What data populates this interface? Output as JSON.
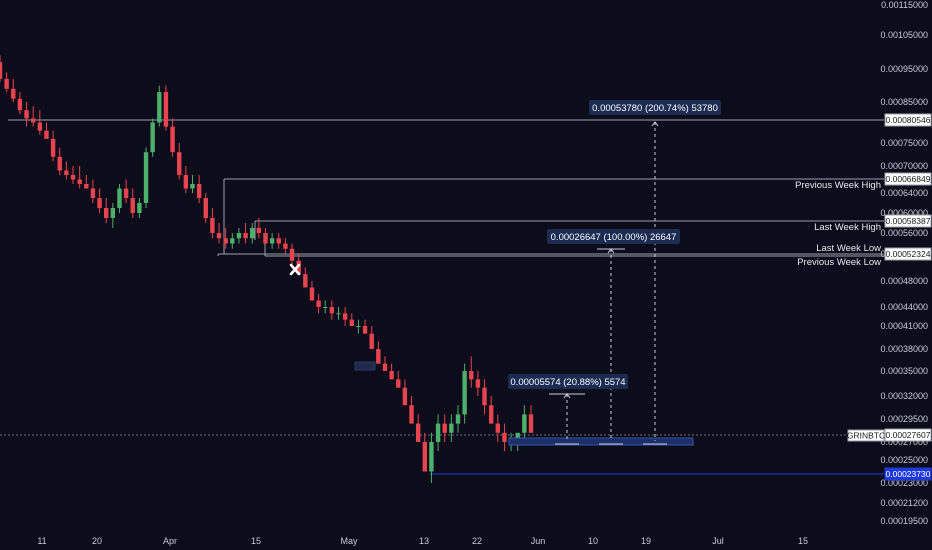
{
  "chart_data": {
    "type": "candlestick",
    "symbol": "GRINBTC",
    "last_price": "0.00027607",
    "x_axis_ticks": [
      "11",
      "20",
      "Apr",
      "15",
      "May",
      "13",
      "22",
      "Jun",
      "10",
      "19",
      "Jul",
      "15"
    ],
    "y_axis_ticks": [
      "0.00115000",
      "0.00105000",
      "0.00095000",
      "0.00085000",
      "0.00075000",
      "0.00070000",
      "0.00064000",
      "0.00060000",
      "0.00056000",
      "0.00052000",
      "0.00048000",
      "0.00044000",
      "0.00041000",
      "0.00038000",
      "0.00035000",
      "0.00032000",
      "0.00029500",
      "0.00027000",
      "0.00025000",
      "0.00023000",
      "0.00021200",
      "0.00019500"
    ],
    "levels": [
      {
        "price": "0.00080546",
        "label": ""
      },
      {
        "price": "0.00066849",
        "label": "Previous Week High"
      },
      {
        "price": "0.00058387",
        "label": "Last Week High"
      },
      {
        "price": "0.00052324",
        "label": "Last Week Low"
      },
      {
        "price": "",
        "label": "Previous Week Low"
      },
      {
        "price": "0.00023730",
        "label": "",
        "color": "#1e3adf"
      }
    ],
    "measurements": [
      {
        "text": "0.00053780 (200.74%) 53780"
      },
      {
        "text": "0.00026647 (100.00%) 26647"
      },
      {
        "text": "0.00005574 (20.88%) 5574"
      }
    ],
    "colors": {
      "up": "#4caf6a",
      "down": "#e8444f",
      "background": "#0c0c1a",
      "level": "#9aa0ac",
      "target_line": "#1e3adf"
    },
    "candles": [
      [
        0.00097,
        0.00099,
        0.00091,
        0.00092
      ],
      [
        0.00092,
        0.00094,
        0.00088,
        0.00089
      ],
      [
        0.00089,
        0.00092,
        0.00085,
        0.00086
      ],
      [
        0.00086,
        0.00088,
        0.00082,
        0.00083
      ],
      [
        0.00083,
        0.00085,
        0.00079,
        0.00081
      ],
      [
        0.00081,
        0.00084,
        0.00079,
        0.0008
      ],
      [
        0.0008,
        0.00083,
        0.00077,
        0.00078
      ],
      [
        0.00078,
        0.0008,
        0.00076,
        0.00076
      ],
      [
        0.00076,
        0.00078,
        0.00071,
        0.00072
      ],
      [
        0.00072,
        0.00074,
        0.00068,
        0.00069
      ],
      [
        0.00069,
        0.00071,
        0.00067,
        0.00068
      ],
      [
        0.00068,
        0.0007,
        0.00066,
        0.00067
      ],
      [
        0.00067,
        0.0007,
        0.00065,
        0.00066
      ],
      [
        0.00066,
        0.00068,
        0.00065,
        0.00065
      ],
      [
        0.00065,
        0.00067,
        0.00062,
        0.00063
      ],
      [
        0.00063,
        0.00065,
        0.0006,
        0.00061
      ],
      [
        0.00061,
        0.00063,
        0.00058,
        0.00059
      ],
      [
        0.00059,
        0.00062,
        0.00057,
        0.00061
      ],
      [
        0.00061,
        0.00066,
        0.0006,
        0.00065
      ],
      [
        0.00065,
        0.00067,
        0.00062,
        0.00063
      ],
      [
        0.00063,
        0.00065,
        0.00059,
        0.0006
      ],
      [
        0.0006,
        0.00063,
        0.00059,
        0.00062
      ],
      [
        0.00062,
        0.00074,
        0.00061,
        0.00073
      ],
      [
        0.00073,
        0.00081,
        0.00072,
        0.0008
      ],
      [
        0.0008,
        0.0009,
        0.00079,
        0.00088
      ],
      [
        0.00088,
        0.0009,
        0.00078,
        0.00079
      ],
      [
        0.00079,
        0.00081,
        0.00072,
        0.00073
      ],
      [
        0.00073,
        0.00075,
        0.00067,
        0.00068
      ],
      [
        0.00068,
        0.0007,
        0.00064,
        0.00065
      ],
      [
        0.00065,
        0.00068,
        0.00064,
        0.00066
      ],
      [
        0.00066,
        0.00068,
        0.00062,
        0.00063
      ],
      [
        0.00063,
        0.00064,
        0.00058,
        0.00059
      ],
      [
        0.00059,
        0.00061,
        0.00055,
        0.00056
      ],
      [
        0.00056,
        0.00058,
        0.00054,
        0.00055
      ],
      [
        0.00055,
        0.00057,
        0.00053,
        0.00054
      ],
      [
        0.00054,
        0.00056,
        0.00053,
        0.00055
      ],
      [
        0.00055,
        0.00057,
        0.00054,
        0.00056
      ],
      [
        0.00056,
        0.00058,
        0.00054,
        0.00055
      ],
      [
        0.00055,
        0.00058,
        0.00054,
        0.00057
      ],
      [
        0.00057,
        0.00059,
        0.00055,
        0.00056
      ],
      [
        0.00056,
        0.00057,
        0.00054,
        0.00054
      ],
      [
        0.00054,
        0.00056,
        0.00053,
        0.00055
      ],
      [
        0.00055,
        0.00056,
        0.00053,
        0.00054
      ],
      [
        0.00054,
        0.00055,
        0.00052,
        0.00053
      ],
      [
        0.00053,
        0.00054,
        0.0005,
        0.00051
      ],
      [
        0.00051,
        0.00052,
        0.00049,
        0.00049
      ],
      [
        0.00049,
        0.0005,
        0.00047,
        0.00047
      ],
      [
        0.00047,
        0.00048,
        0.00045,
        0.00045
      ],
      [
        0.00045,
        0.00046,
        0.00043,
        0.00044
      ],
      [
        0.00044,
        0.00045,
        0.00043,
        0.00044
      ],
      [
        0.00044,
        0.00045,
        0.00042,
        0.00043
      ],
      [
        0.00043,
        0.00044,
        0.00042,
        0.00043
      ],
      [
        0.00043,
        0.00044,
        0.00041,
        0.00042
      ],
      [
        0.00042,
        0.00043,
        0.00041,
        0.00041
      ],
      [
        0.00041,
        0.00042,
        0.0004,
        0.00041
      ],
      [
        0.00041,
        0.00042,
        0.0004,
        0.0004
      ],
      [
        0.0004,
        0.00041,
        0.00038,
        0.00038
      ],
      [
        0.00038,
        0.00039,
        0.00036,
        0.00036
      ],
      [
        0.00036,
        0.00037,
        0.00035,
        0.00035
      ],
      [
        0.00035,
        0.00036,
        0.00034,
        0.00034
      ],
      [
        0.00034,
        0.00035,
        0.00033,
        0.00033
      ],
      [
        0.00033,
        0.00034,
        0.00031,
        0.00031
      ],
      [
        0.00031,
        0.00032,
        0.00029,
        0.00029
      ],
      [
        0.00029,
        0.0003,
        0.00027,
        0.00027
      ],
      [
        0.00027,
        0.00028,
        0.00024,
        0.00024
      ],
      [
        0.00024,
        0.00028,
        0.00023,
        0.00027
      ],
      [
        0.00027,
        0.0003,
        0.00026,
        0.00029
      ],
      [
        0.00029,
        0.0003,
        0.00027,
        0.00028
      ],
      [
        0.00028,
        0.0003,
        0.00027,
        0.00029
      ],
      [
        0.00029,
        0.00031,
        0.00028,
        0.0003
      ],
      [
        0.0003,
        0.00036,
        0.00029,
        0.00035
      ],
      [
        0.00035,
        0.00037,
        0.00033,
        0.00034
      ],
      [
        0.00034,
        0.00035,
        0.00032,
        0.00033
      ],
      [
        0.00033,
        0.00034,
        0.0003,
        0.00031
      ],
      [
        0.00031,
        0.00032,
        0.00029,
        0.00029
      ],
      [
        0.00029,
        0.0003,
        0.00027,
        0.00028
      ],
      [
        0.00028,
        0.00029,
        0.00026,
        0.00027
      ],
      [
        0.00027,
        0.00028,
        0.00026,
        0.00027
      ],
      [
        0.00027,
        0.00028,
        0.00026,
        0.00028
      ],
      [
        0.00028,
        0.00031,
        0.00027,
        0.0003
      ],
      [
        0.0003,
        0.00031,
        0.00028,
        0.00028
      ]
    ]
  }
}
